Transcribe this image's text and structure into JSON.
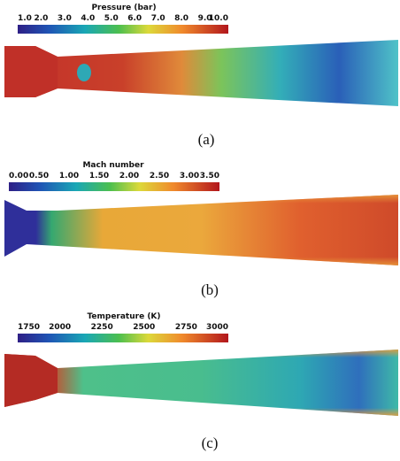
{
  "panels": [
    {
      "colorbar": {
        "title": "Pressure (bar)",
        "ticks": [
          "1.0",
          "2.0",
          "3.0",
          "4.0",
          "5.0",
          "6.0",
          "7.0",
          "8.0",
          "9.0",
          "10.0"
        ]
      },
      "caption": "(a)"
    },
    {
      "colorbar": {
        "title": "Mach number",
        "ticks": [
          "0.00",
          "0.50",
          "1.00",
          "1.50",
          "2.00",
          "2.50",
          "3.00",
          "3.50"
        ]
      },
      "caption": "(b)"
    },
    {
      "colorbar": {
        "title": "Temperature (K)",
        "ticks": [
          "1750",
          "2000",
          "2250",
          "2500",
          "2750",
          "3000"
        ]
      },
      "caption": "(c)"
    }
  ]
}
